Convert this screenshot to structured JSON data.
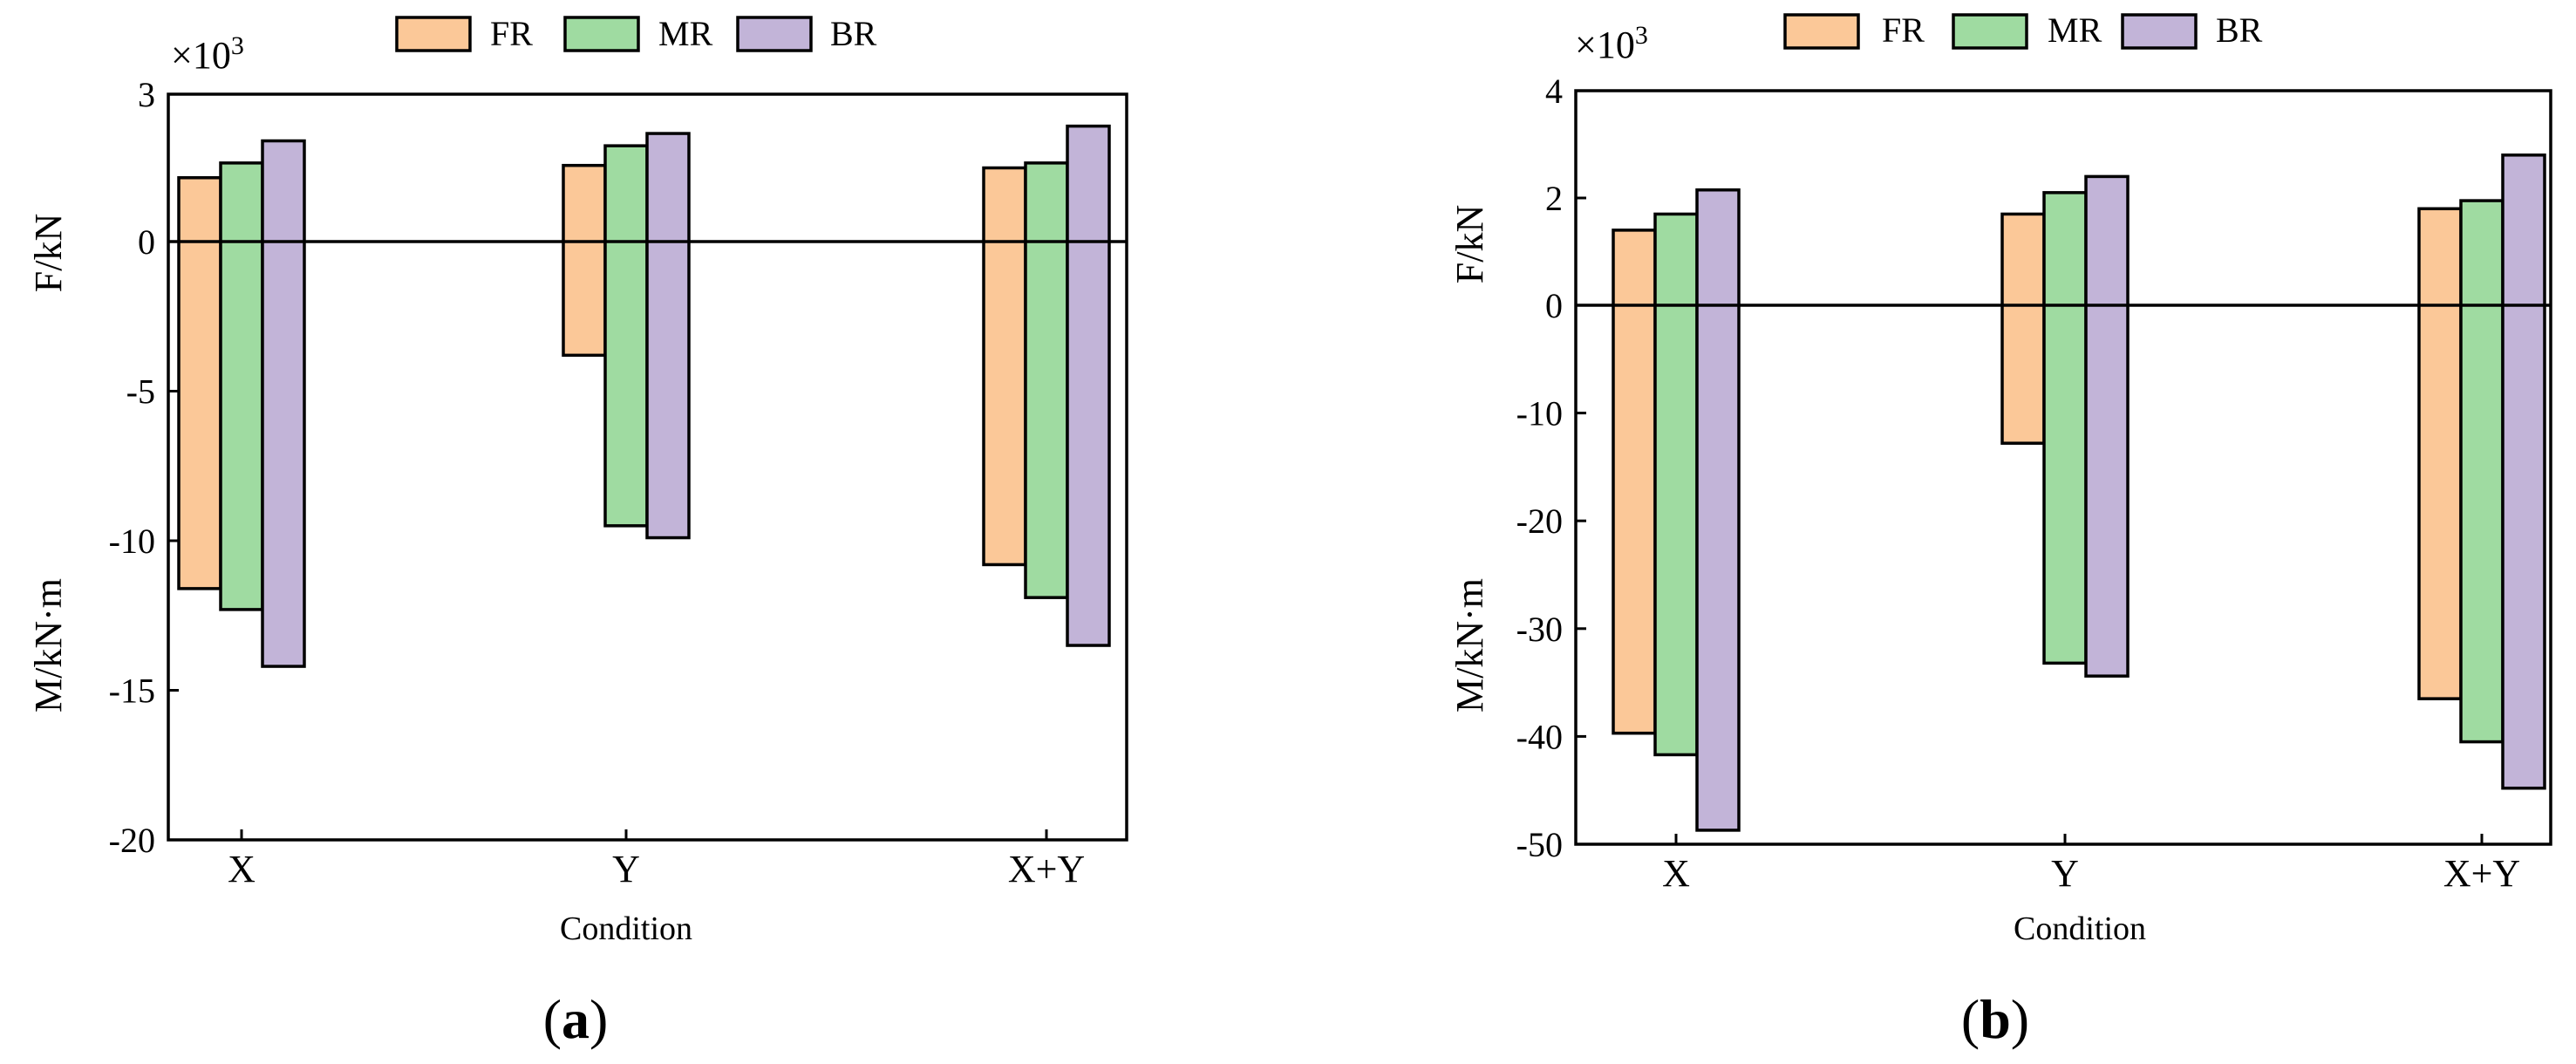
{
  "colors": {
    "FR": "#fbc898",
    "MR": "#9fdba1",
    "BR": "#c2b4d8"
  },
  "legend": [
    "FR",
    "MR",
    "BR"
  ],
  "chart_data": [
    {
      "type": "bar",
      "panel_label": "a",
      "multiplier_text": "×10",
      "multiplier_exp": "3",
      "xlabel": "Condition",
      "ylabel_top": "F/kN",
      "ylabel_bottom": "M/kN·m",
      "categories": [
        "X",
        "Y",
        "X+Y"
      ],
      "ylim": [
        -20,
        3
      ],
      "yticks": [
        3,
        0,
        -5,
        -10,
        -15,
        -20
      ],
      "grid": false,
      "legend_position": "top-center",
      "series": [
        {
          "name": "FR",
          "positive": [
            1.3,
            1.55,
            1.5
          ],
          "negative": [
            -11.6,
            -3.8,
            -10.8
          ]
        },
        {
          "name": "MR",
          "positive": [
            1.6,
            1.95,
            1.6
          ],
          "negative": [
            -12.3,
            -9.5,
            -11.9
          ]
        },
        {
          "name": "BR",
          "positive": [
            2.05,
            2.2,
            2.35
          ],
          "negative": [
            -14.2,
            -9.9,
            -13.5
          ]
        }
      ]
    },
    {
      "type": "bar",
      "panel_label": "b",
      "multiplier_text": "×10",
      "multiplier_exp": "3",
      "xlabel": "Condition",
      "ylabel_top": "F/kN",
      "ylabel_bottom": "M/kN·m",
      "categories": [
        "X",
        "Y",
        "X+Y"
      ],
      "ylim": [
        -50,
        4
      ],
      "yticks": [
        4,
        2,
        0,
        -10,
        -20,
        -30,
        -40,
        -50
      ],
      "grid": false,
      "legend_position": "top-center",
      "series": [
        {
          "name": "FR",
          "positive": [
            1.4,
            1.7,
            1.8
          ],
          "negative": [
            -39.7,
            -12.8,
            -36.5
          ]
        },
        {
          "name": "MR",
          "positive": [
            1.7,
            2.1,
            1.95
          ],
          "negative": [
            -41.7,
            -33.2,
            -40.5
          ]
        },
        {
          "name": "BR",
          "positive": [
            2.15,
            2.4,
            2.8
          ],
          "negative": [
            -48.7,
            -34.4,
            -44.8
          ]
        }
      ]
    }
  ]
}
